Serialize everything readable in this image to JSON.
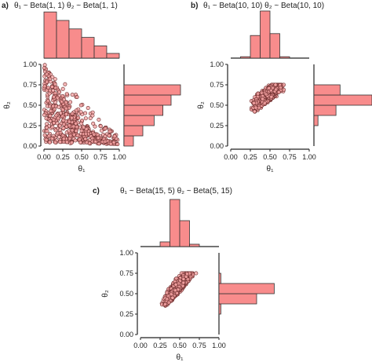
{
  "chart_data": [
    {
      "type": "scatter",
      "panel_label": "a)",
      "title": "θ₁ ~ Beta(1, 1)   θ₂ ~ Beta(1, 1)",
      "xlabel": "θ₁",
      "ylabel": "θ₂",
      "xlim": [
        0,
        1
      ],
      "ylim": [
        0,
        1
      ],
      "xticks": [
        "0.00",
        "0.25",
        "0.50",
        "0.75",
        "1.00"
      ],
      "yticks": [
        "0.00",
        "0.25",
        "0.50",
        "0.75",
        "1.00"
      ],
      "points_region": "theta2 < theta1 (upper-left triangle region in figure is filled densely)",
      "point_cloud": {
        "x_range": [
          0.0,
          1.0
        ],
        "y_range": [
          0.0,
          1.0
        ],
        "constraint": "theta2 <= 1 - theta1 + small"
      },
      "marginal_x": {
        "bin_edges": [
          0.0,
          0.167,
          0.333,
          0.5,
          0.667,
          0.833,
          1.0
        ],
        "heights": [
          0.98,
          0.8,
          0.62,
          0.44,
          0.26,
          0.1
        ]
      },
      "marginal_y": {
        "bin_edges": [
          0.0,
          0.125,
          0.25,
          0.375,
          0.5,
          0.625,
          0.75,
          0.875,
          1.0
        ],
        "heights": [
          0.15,
          0.3,
          0.48,
          0.62,
          0.75,
          0.9,
          0.0,
          0.0
        ]
      },
      "grid": false,
      "colors": {
        "point_fill": "#f4a3a3",
        "point_stroke": "#6b2b2b",
        "bar_fill": "#f88c8c",
        "bar_stroke": "#333333"
      }
    },
    {
      "type": "scatter",
      "panel_label": "b)",
      "title": "θ₁ ~ Beta(10, 10)   θ₂ ~ Beta(10, 10)",
      "xlabel": "θ₁",
      "ylabel": "θ₂",
      "xlim": [
        0,
        1
      ],
      "ylim": [
        0,
        1
      ],
      "xticks": [
        "0.00",
        "0.25",
        "0.50",
        "0.75",
        "1.00"
      ],
      "yticks": [
        "0.00",
        "0.25",
        "0.50",
        "0.75",
        "1.00"
      ],
      "point_cloud": {
        "x_range": [
          0.22,
          0.72
        ],
        "y_range": [
          0.38,
          0.75
        ]
      },
      "marginal_x": {
        "bin_edges": [
          0.0,
          0.125,
          0.25,
          0.375,
          0.5,
          0.625,
          0.75,
          0.875,
          1.0
        ],
        "heights": [
          0.0,
          0.03,
          0.48,
          1.0,
          0.52,
          0.03,
          0.0,
          0.0
        ]
      },
      "marginal_y": {
        "bin_edges": [
          0.25,
          0.375,
          0.5,
          0.625,
          0.75
        ],
        "heights": [
          0.07,
          0.38,
          1.0,
          0.45
        ]
      },
      "grid": false,
      "colors": {
        "point_fill": "#f4a3a3",
        "point_stroke": "#6b2b2b",
        "bar_fill": "#f88c8c",
        "bar_stroke": "#333333"
      }
    },
    {
      "type": "scatter",
      "panel_label": "c)",
      "title": "θ₁ ~ Beta(15, 5)   θ₂ ~ Beta(5, 15)",
      "xlabel": "θ₁",
      "ylabel": "θ₂",
      "xlim": [
        0,
        1
      ],
      "ylim": [
        0,
        1
      ],
      "xticks": [
        "0.00",
        "0.25",
        "0.50",
        "0.75",
        "1.00"
      ],
      "yticks": [
        "0.00",
        "0.25",
        "0.50",
        "0.75",
        "1.00"
      ],
      "point_cloud": {
        "x_range": [
          0.25,
          0.72
        ],
        "y_range": [
          0.25,
          0.75
        ]
      },
      "marginal_x": {
        "bin_edges": [
          0.0,
          0.125,
          0.25,
          0.375,
          0.5,
          0.625,
          0.75,
          0.875,
          1.0
        ],
        "heights": [
          0.0,
          0.0,
          0.1,
          1.0,
          0.55,
          0.05,
          0.0,
          0.0
        ]
      },
      "marginal_y": {
        "bin_edges": [
          0.25,
          0.375,
          0.5,
          0.625,
          0.75
        ],
        "heights": [
          0.03,
          0.6,
          0.88,
          0.03
        ]
      },
      "grid": false,
      "colors": {
        "point_fill": "#f4a3a3",
        "point_stroke": "#6b2b2b",
        "bar_fill": "#f88c8c",
        "bar_stroke": "#333333"
      }
    }
  ]
}
